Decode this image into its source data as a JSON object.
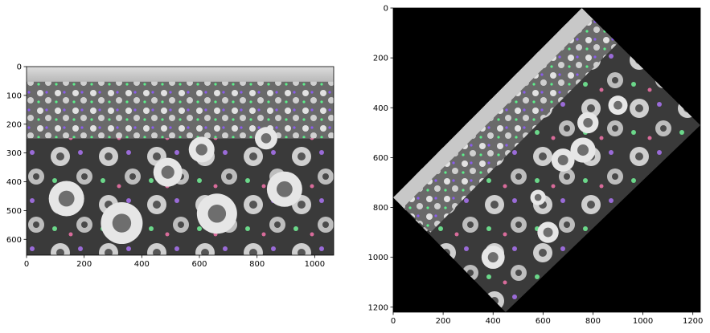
{
  "figure": {
    "background": "#ffffff"
  },
  "chart_data": [
    {
      "type": "image",
      "description_colors": {
        "frame": "#000000",
        "photo_dark": "#2b2b2b",
        "photo_light": "#d8d8d8"
      },
      "xlim": [
        0,
        1066
      ],
      "ylim": [
        655,
        0
      ],
      "xticks": [
        0,
        200,
        400,
        600,
        800,
        1000
      ],
      "yticks": [
        0,
        100,
        200,
        300,
        400,
        500,
        600
      ],
      "grid": false
    },
    {
      "type": "image",
      "description_colors": {
        "frame": "#000000",
        "photo_dark": "#2b2b2b",
        "photo_light": "#d8d8d8"
      },
      "xlim": [
        0,
        1230
      ],
      "ylim": [
        1220,
        0
      ],
      "xticks": [
        0,
        200,
        400,
        600,
        800,
        1000,
        1200
      ],
      "yticks": [
        0,
        200,
        400,
        600,
        800,
        1000,
        1200
      ],
      "grid": false
    }
  ]
}
